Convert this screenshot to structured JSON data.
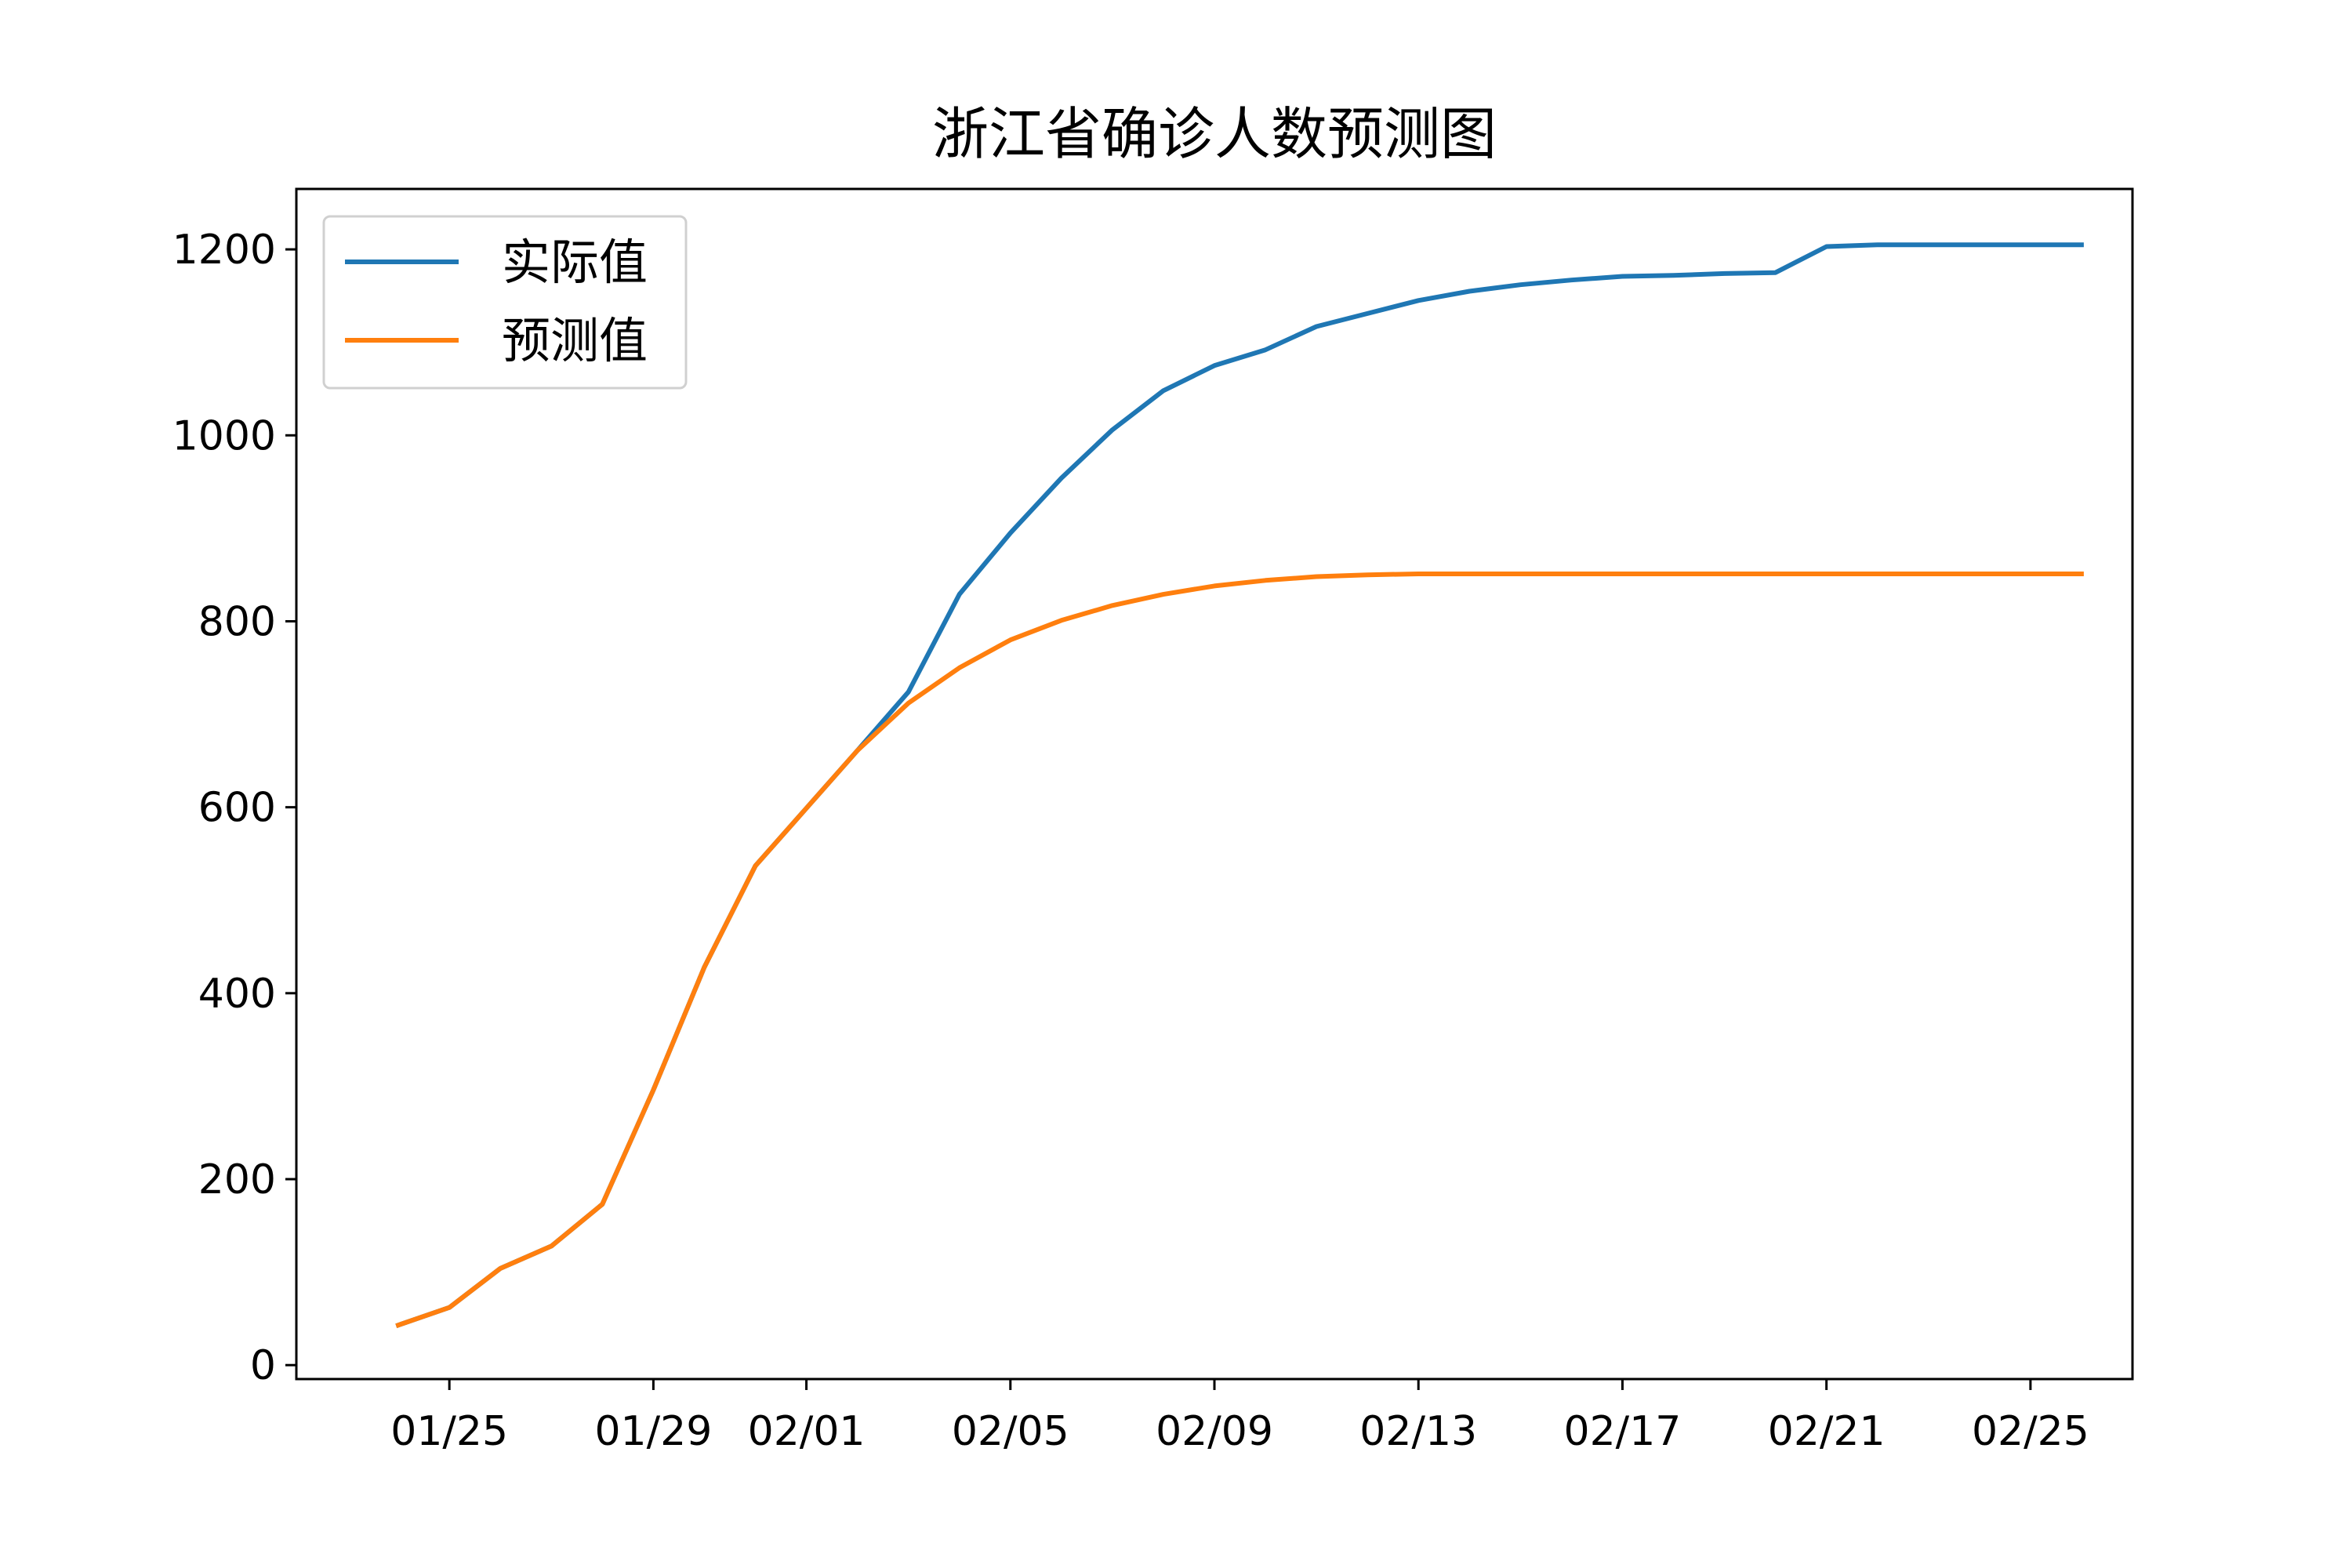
{
  "chart_data": {
    "type": "line",
    "title": "浙江省确诊人数预测图",
    "xlabel": "",
    "ylabel": "",
    "x_tick_labels": [
      "01/25",
      "01/29",
      "02/01",
      "02/05",
      "02/09",
      "02/13",
      "02/17",
      "02/21",
      "02/25"
    ],
    "x_ticks": [
      "2020-01-25",
      "2020-01-29",
      "2020-02-01",
      "2020-02-05",
      "2020-02-09",
      "2020-02-13",
      "2020-02-17",
      "2020-02-21",
      "2020-02-25"
    ],
    "y_ticks": [
      0,
      200,
      400,
      600,
      800,
      1000,
      1200
    ],
    "xlim": [
      "2020-01-22",
      "2020-02-27"
    ],
    "ylim": [
      -15,
      1265
    ],
    "grid": false,
    "legend_position": "top-left",
    "x": [
      "2020-01-24",
      "2020-01-25",
      "2020-01-26",
      "2020-01-27",
      "2020-01-28",
      "2020-01-29",
      "2020-01-30",
      "2020-01-31",
      "2020-02-01",
      "2020-02-02",
      "2020-02-03",
      "2020-02-04",
      "2020-02-05",
      "2020-02-06",
      "2020-02-07",
      "2020-02-08",
      "2020-02-09",
      "2020-02-10",
      "2020-02-11",
      "2020-02-12",
      "2020-02-13",
      "2020-02-14",
      "2020-02-15",
      "2020-02-16",
      "2020-02-17",
      "2020-02-18",
      "2020-02-19",
      "2020-02-20",
      "2020-02-21",
      "2020-02-22",
      "2020-02-23",
      "2020-02-24",
      "2020-02-25",
      "2020-02-26"
    ],
    "series": [
      {
        "name": "实际值",
        "color": "#1f77b4",
        "values": [
          43,
          62,
          104,
          128,
          173,
          296,
          428,
          537,
          599,
          661,
          724,
          829,
          895,
          954,
          1006,
          1048,
          1075,
          1092,
          1117,
          1131,
          1145,
          1155,
          1162,
          1167,
          1171,
          1172,
          1174,
          1175,
          1203,
          1205,
          1205,
          1205,
          1205,
          1205
        ]
      },
      {
        "name": "预测值",
        "color": "#ff7f0e",
        "values": [
          43,
          62,
          104,
          128,
          173,
          296,
          428,
          537,
          599,
          661,
          712,
          750,
          780,
          801,
          817,
          829,
          838,
          844,
          848,
          850,
          851,
          851,
          851,
          851,
          851,
          851,
          851,
          851,
          851,
          851,
          851,
          851,
          851,
          851
        ]
      }
    ]
  }
}
